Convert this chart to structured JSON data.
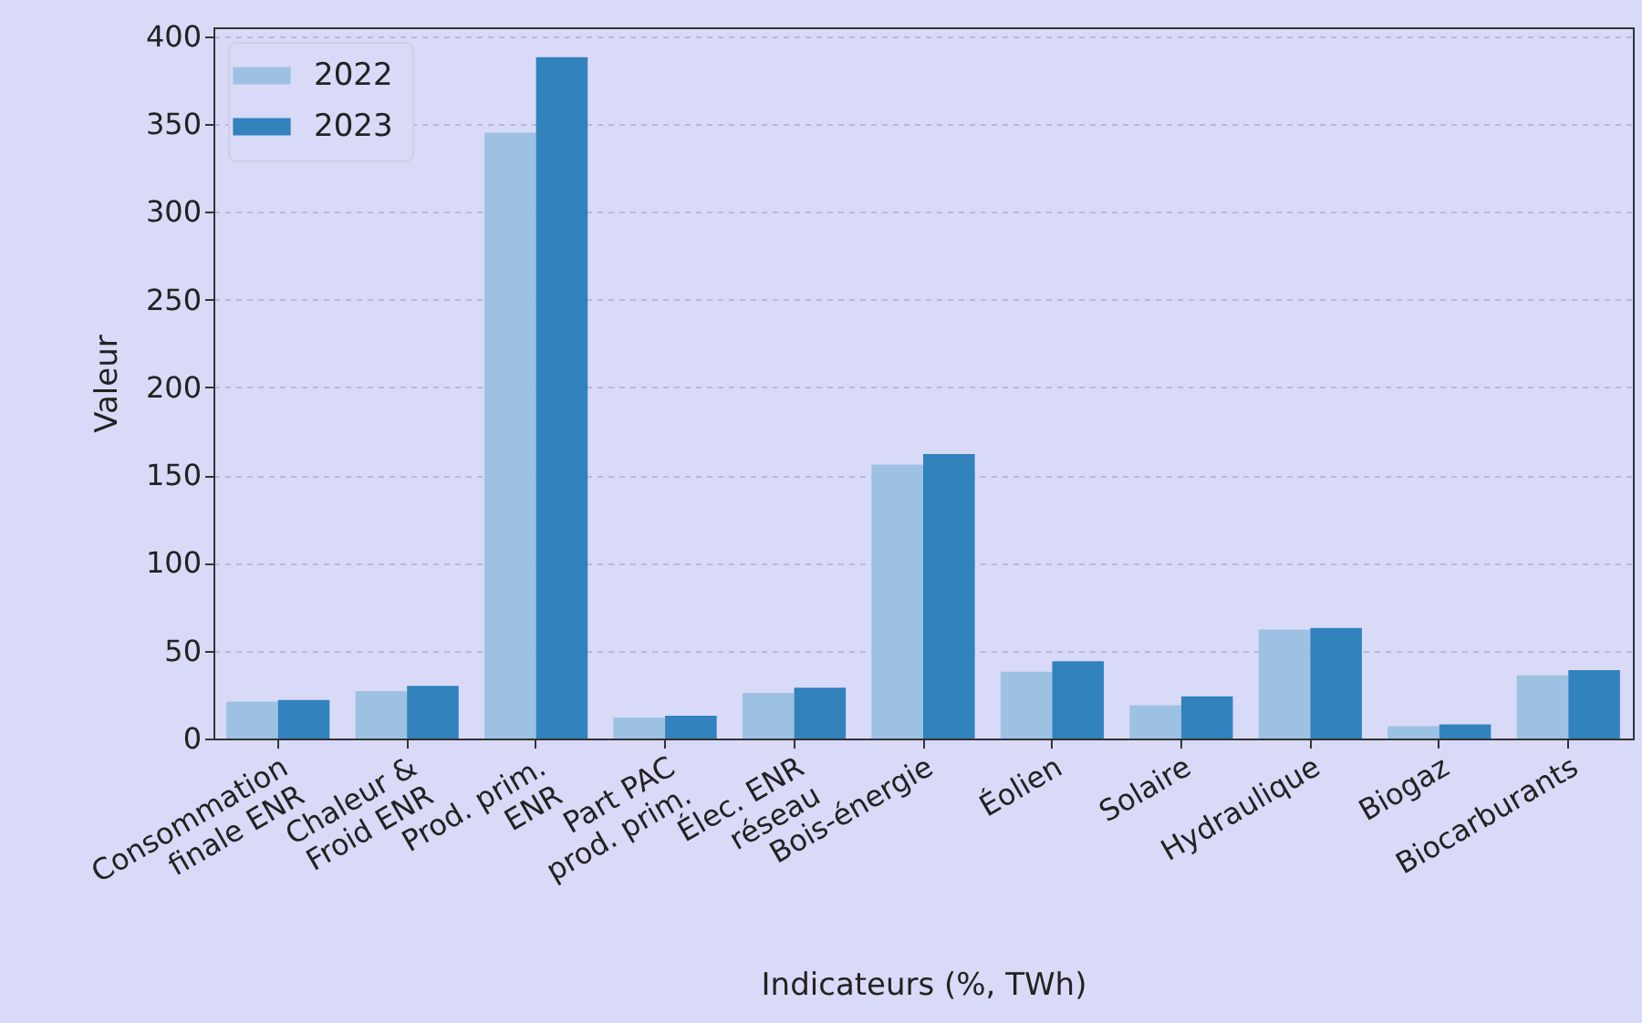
{
  "chart_data": {
    "type": "bar",
    "xlabel": "Indicateurs (%, TWh)",
    "ylabel": "Valeur",
    "categories": [
      "Consommation\nfinale ENR",
      "Chaleur &\nFroid ENR",
      "Prod. prim.\nENR",
      "Part PAC\nprod. prim.",
      "Élec. ENR\nréseau",
      "Bois-énergie",
      "Éolien",
      "Solaire",
      "Hydraulique",
      "Biogaz",
      "Biocarburants"
    ],
    "series": [
      {
        "name": "2022",
        "color": "#9dc1e2",
        "values": [
          21,
          27,
          345,
          12,
          26,
          156,
          38,
          19,
          62,
          7,
          36
        ]
      },
      {
        "name": "2023",
        "color": "#3182bd",
        "values": [
          22,
          30,
          388,
          13,
          29,
          162,
          44,
          24,
          63,
          8,
          39
        ]
      }
    ],
    "ylim": [
      0,
      405
    ],
    "yticks": [
      0,
      50,
      100,
      150,
      200,
      250,
      300,
      350,
      400
    ],
    "grid": "y",
    "legend": "top left"
  }
}
